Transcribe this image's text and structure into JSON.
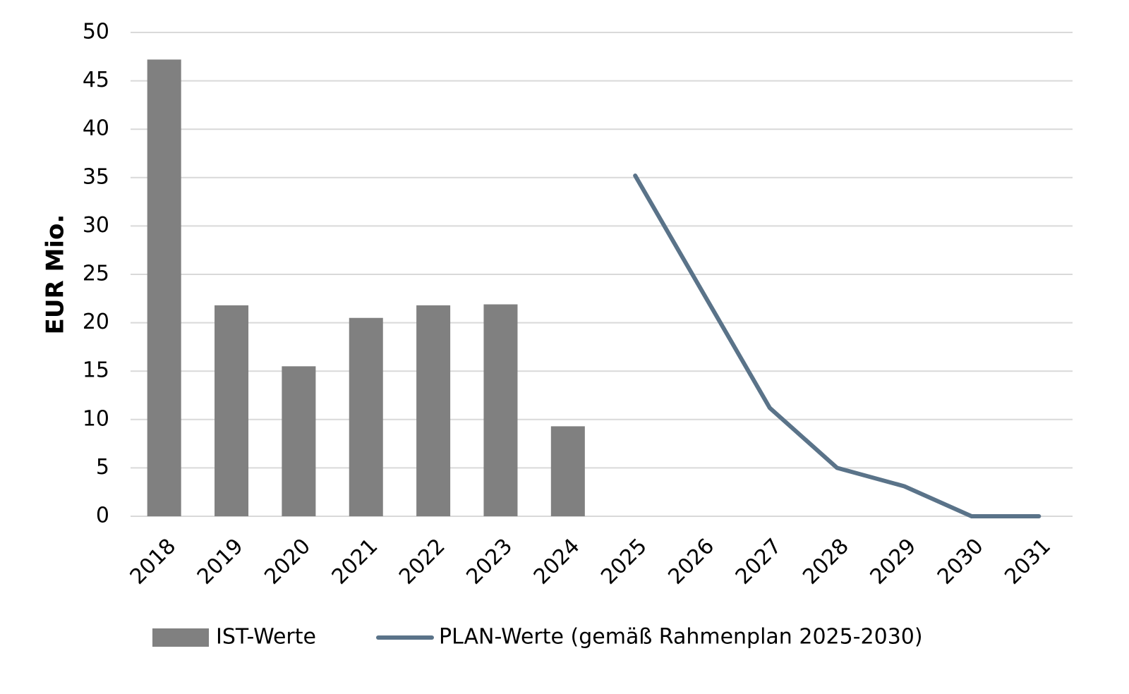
{
  "chart_data": {
    "type": "combo",
    "y_label": "EUR Mio.",
    "categories": [
      "2018",
      "2019",
      "2020",
      "2021",
      "2022",
      "2023",
      "2024",
      "2025",
      "2026",
      "2027",
      "2028",
      "2029",
      "2030",
      "2031"
    ],
    "series": [
      {
        "name": "IST-Werte",
        "type": "bar",
        "color": "#808080",
        "values": [
          47.2,
          21.8,
          15.5,
          20.5,
          21.8,
          21.9,
          9.3,
          null,
          null,
          null,
          null,
          null,
          null,
          null
        ]
      },
      {
        "name": "PLAN-Werte (gemäß Rahmenplan 2025-2030)",
        "type": "line",
        "color": "#5a7389",
        "values": [
          null,
          null,
          null,
          null,
          null,
          null,
          null,
          35.2,
          23.2,
          11.2,
          5.0,
          3.1,
          0,
          0
        ]
      }
    ],
    "ylim": [
      0,
      50
    ],
    "yticks": [
      0,
      5,
      10,
      15,
      20,
      25,
      30,
      35,
      40,
      45,
      50
    ],
    "grid": true,
    "legend": "bottom"
  }
}
